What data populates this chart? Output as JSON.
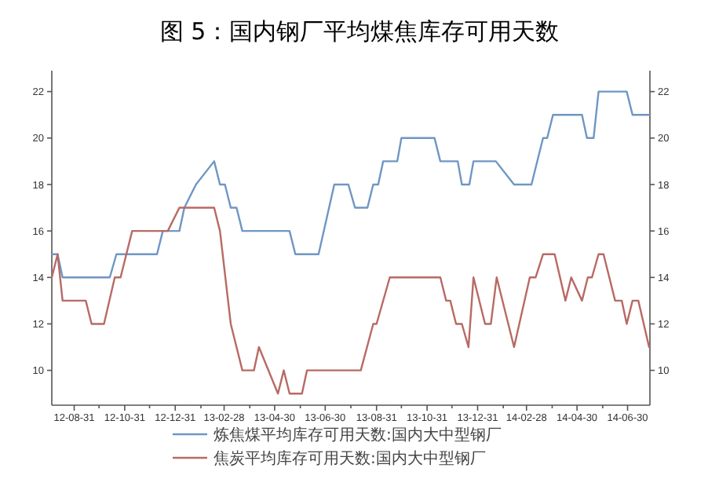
{
  "chart_data": {
    "type": "line",
    "title": "图 5：国内钢厂平均煤焦库存可用天数",
    "xlim": [
      "2012-08-04",
      "2014-07-27"
    ],
    "xticks": [
      {
        "value": "2012-08-31",
        "label": "12-08-31"
      },
      {
        "value": "2012-09-30",
        "label": null
      },
      {
        "value": "2012-10-31",
        "label": "12-10-31"
      },
      {
        "value": "2012-11-30",
        "label": null
      },
      {
        "value": "2012-12-31",
        "label": "12-12-31"
      },
      {
        "value": "2013-01-31",
        "label": null
      },
      {
        "value": "2013-02-28",
        "label": "13-02-28"
      },
      {
        "value": "2013-03-31",
        "label": null
      },
      {
        "value": "2013-04-30",
        "label": "13-04-30"
      },
      {
        "value": "2013-05-31",
        "label": null
      },
      {
        "value": "2013-06-30",
        "label": "13-06-30"
      },
      {
        "value": "2013-07-31",
        "label": null
      },
      {
        "value": "2013-08-31",
        "label": "13-08-31"
      },
      {
        "value": "2013-09-30",
        "label": null
      },
      {
        "value": "2013-10-31",
        "label": "13-10-31"
      },
      {
        "value": "2013-11-30",
        "label": null
      },
      {
        "value": "2013-12-31",
        "label": "13-12-31"
      },
      {
        "value": "2014-01-31",
        "label": null
      },
      {
        "value": "2014-02-28",
        "label": "14-02-28"
      },
      {
        "value": "2014-03-31",
        "label": null
      },
      {
        "value": "2014-04-30",
        "label": "14-04-30"
      },
      {
        "value": "2014-05-31",
        "label": null
      },
      {
        "value": "2014-06-30",
        "label": "14-06-30"
      }
    ],
    "ylim": [
      8.5,
      22.9
    ],
    "yticks": [
      10,
      12,
      14,
      16,
      18,
      20,
      22
    ],
    "y2lim": [
      8.5,
      22.9
    ],
    "y2ticks": [
      10,
      12,
      14,
      16,
      18,
      20,
      22
    ],
    "grid": false,
    "legend": "bottom",
    "series": [
      {
        "name": "炼焦煤平均库存可用天数:国内大中型钢厂",
        "color": "#6f96c4",
        "x": [
          "2012-08-04",
          "2012-08-11",
          "2012-08-17",
          "2012-10-13",
          "2012-10-21",
          "2012-12-09",
          "2012-12-16",
          "2013-01-05",
          "2013-01-11",
          "2013-01-25",
          "2013-02-16",
          "2013-02-23",
          "2013-03-01",
          "2013-03-08",
          "2013-03-15",
          "2013-03-22",
          "2013-05-18",
          "2013-05-25",
          "2013-06-22",
          "2013-07-11",
          "2013-07-28",
          "2013-08-05",
          "2013-08-20",
          "2013-08-27",
          "2013-09-02",
          "2013-09-08",
          "2013-09-25",
          "2013-09-30",
          "2013-11-09",
          "2013-11-16",
          "2013-12-07",
          "2013-12-12",
          "2013-12-21",
          "2013-12-26",
          "2014-01-22",
          "2014-02-13",
          "2014-03-06",
          "2014-03-20",
          "2014-03-25",
          "2014-04-01",
          "2014-05-06",
          "2014-05-12",
          "2014-05-20",
          "2014-05-26",
          "2014-06-29",
          "2014-07-06",
          "2014-07-26"
        ],
        "values": [
          15,
          15,
          14,
          14,
          15,
          15,
          16,
          16,
          17,
          18,
          19,
          18,
          18,
          17,
          17,
          16,
          16,
          15,
          15,
          18,
          18,
          17,
          17,
          18,
          18,
          19,
          19,
          20,
          20,
          19,
          19,
          18,
          18,
          19,
          19,
          18,
          18,
          20,
          20,
          21,
          21,
          20,
          20,
          22,
          22,
          21,
          21
        ]
      },
      {
        "name": "焦炭平均库存可用天数:国内大中型钢厂",
        "color": "#b86a64",
        "x": [
          "2012-08-04",
          "2012-08-11",
          "2012-08-17",
          "2012-09-14",
          "2012-09-21",
          "2012-10-06",
          "2012-10-19",
          "2012-10-26",
          "2012-11-09",
          "2012-12-22",
          "2013-01-05",
          "2013-02-16",
          "2013-02-23",
          "2013-03-08",
          "2013-03-22",
          "2013-04-05",
          "2013-04-11",
          "2013-05-04",
          "2013-05-11",
          "2013-05-18",
          "2013-06-02",
          "2013-06-08",
          "2013-08-12",
          "2013-08-27",
          "2013-08-31",
          "2013-09-16",
          "2013-11-09",
          "2013-11-16",
          "2013-11-23",
          "2013-11-28",
          "2013-12-05",
          "2013-12-12",
          "2013-12-20",
          "2013-12-26",
          "2014-01-09",
          "2014-01-16",
          "2014-01-23",
          "2014-02-13",
          "2014-03-04",
          "2014-03-11",
          "2014-03-20",
          "2014-04-03",
          "2014-04-16",
          "2014-04-23",
          "2014-05-06",
          "2014-05-13",
          "2014-05-18",
          "2014-05-26",
          "2014-06-01",
          "2014-06-15",
          "2014-06-23",
          "2014-06-29",
          "2014-07-06",
          "2014-07-13",
          "2014-07-26"
        ],
        "values": [
          14,
          15,
          13,
          13,
          12,
          12,
          14,
          14,
          16,
          16,
          17,
          17,
          16,
          12,
          10,
          10,
          11,
          9,
          10,
          9,
          9,
          10,
          10,
          12,
          12,
          14,
          14,
          14,
          13,
          13,
          12,
          12,
          11,
          14,
          12,
          12,
          14,
          11,
          14,
          14,
          15,
          15,
          13,
          14,
          13,
          14,
          14,
          15,
          15,
          13,
          13,
          12,
          13,
          13,
          11
        ]
      }
    ]
  }
}
